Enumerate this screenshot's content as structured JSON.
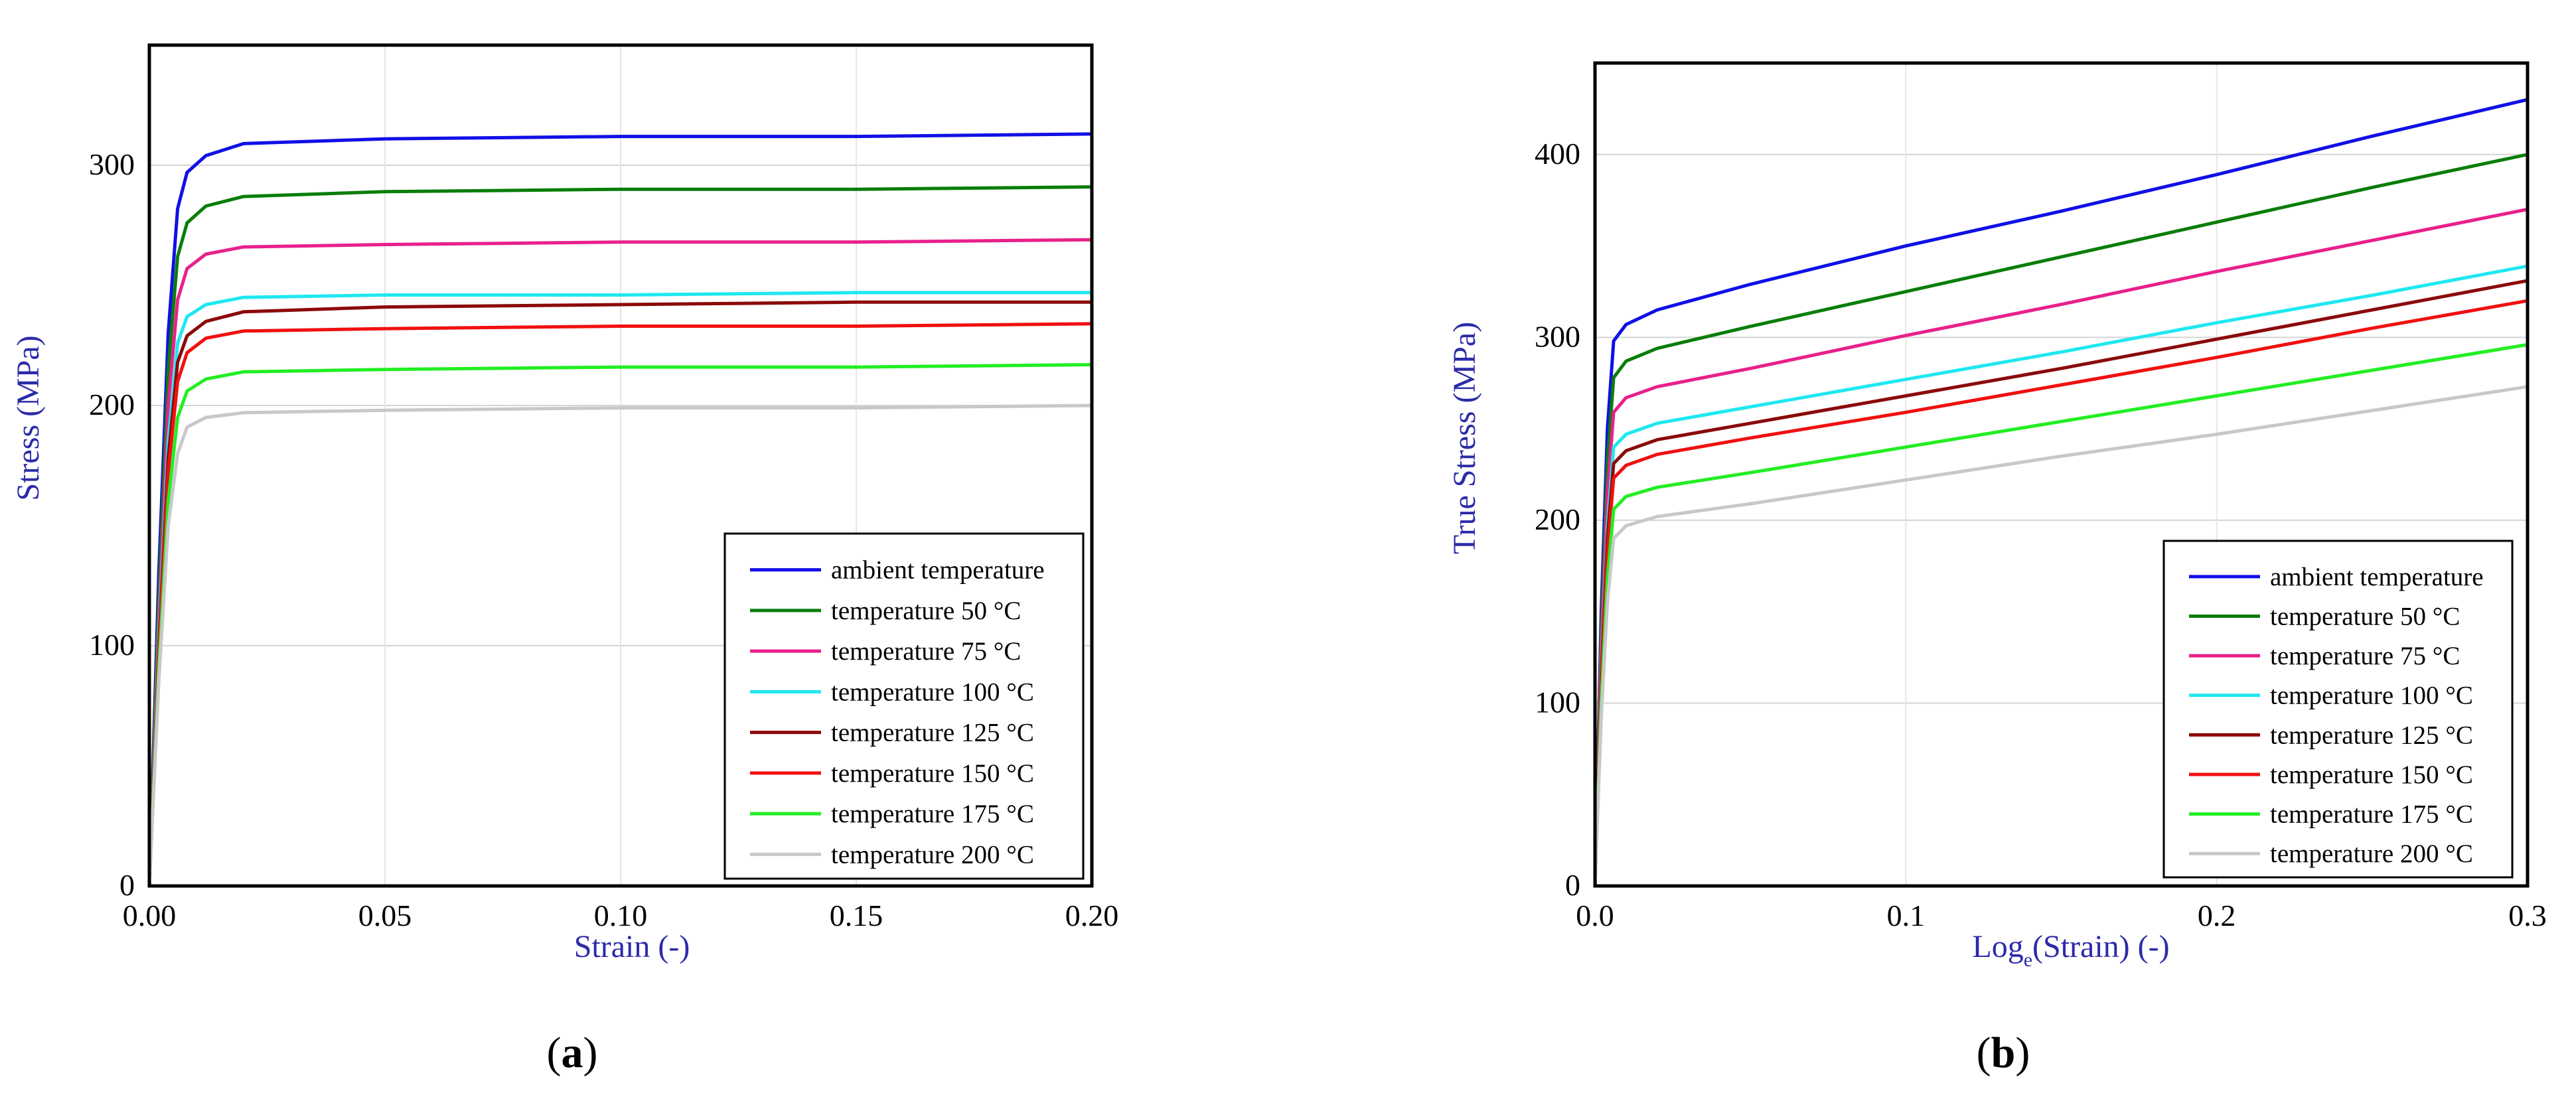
{
  "chart_data": [
    {
      "panel": "a",
      "caption_label": "a",
      "type": "line",
      "xlabel": "Strain (-)",
      "ylabel": "Stress (MPa)",
      "xlim": [
        0,
        0.2
      ],
      "ylim": [
        0,
        350
      ],
      "xticks": [
        0,
        0.05,
        0.1,
        0.15,
        0.2
      ],
      "xtick_labels": [
        "0.00",
        "0.05",
        "0.10",
        "0.15",
        "0.20"
      ],
      "yticks": [
        0,
        100,
        200,
        300
      ],
      "ytick_labels": [
        "0",
        "100",
        "200",
        "300"
      ],
      "grid": true,
      "legend_position": "bottom-right",
      "series": [
        {
          "name": "ambient temperature",
          "color": "#1010e6",
          "x": [
            0,
            0.002,
            0.004,
            0.006,
            0.008,
            0.012,
            0.02,
            0.05,
            0.1,
            0.15,
            0.2
          ],
          "y": [
            0,
            130,
            230,
            282,
            297,
            304,
            309,
            311,
            312,
            312,
            313
          ]
        },
        {
          "name": "temperature 50 °C",
          "color": "#0a7d0a",
          "x": [
            0,
            0.002,
            0.004,
            0.006,
            0.008,
            0.012,
            0.02,
            0.05,
            0.1,
            0.15,
            0.2
          ],
          "y": [
            0,
            120,
            215,
            262,
            276,
            283,
            287,
            289,
            290,
            290,
            291
          ]
        },
        {
          "name": "temperature 75 °C",
          "color": "#e8208c",
          "x": [
            0,
            0.002,
            0.004,
            0.006,
            0.008,
            0.012,
            0.02,
            0.05,
            0.1,
            0.15,
            0.2
          ],
          "y": [
            0,
            110,
            200,
            244,
            257,
            263,
            266,
            267,
            268,
            268,
            269
          ]
        },
        {
          "name": "temperature 100 °C",
          "color": "#1fe8f0",
          "x": [
            0,
            0.002,
            0.004,
            0.006,
            0.008,
            0.012,
            0.02,
            0.05,
            0.1,
            0.15,
            0.2
          ],
          "y": [
            0,
            105,
            185,
            226,
            237,
            242,
            245,
            246,
            246,
            247,
            247
          ]
        },
        {
          "name": "temperature 125 °C",
          "color": "#8b0a0a",
          "x": [
            0,
            0.002,
            0.004,
            0.006,
            0.008,
            0.012,
            0.02,
            0.05,
            0.1,
            0.15,
            0.2
          ],
          "y": [
            0,
            100,
            178,
            218,
            229,
            235,
            239,
            241,
            242,
            243,
            243
          ]
        },
        {
          "name": "temperature 150 °C",
          "color": "#f01010",
          "x": [
            0,
            0.002,
            0.004,
            0.006,
            0.008,
            0.012,
            0.02,
            0.05,
            0.1,
            0.15,
            0.2
          ],
          "y": [
            0,
            98,
            172,
            210,
            222,
            228,
            231,
            232,
            233,
            233,
            234
          ]
        },
        {
          "name": "temperature 175 °C",
          "color": "#22ee22",
          "x": [
            0,
            0.002,
            0.004,
            0.006,
            0.008,
            0.012,
            0.02,
            0.05,
            0.1,
            0.15,
            0.2
          ],
          "y": [
            0,
            90,
            160,
            195,
            206,
            211,
            214,
            215,
            216,
            216,
            217
          ]
        },
        {
          "name": "temperature 200 °C",
          "color": "#c8c8c8",
          "x": [
            0,
            0.002,
            0.004,
            0.006,
            0.008,
            0.012,
            0.02,
            0.05,
            0.1,
            0.15,
            0.2
          ],
          "y": [
            0,
            85,
            150,
            180,
            191,
            195,
            197,
            198,
            199,
            199,
            200
          ]
        }
      ]
    },
    {
      "panel": "b",
      "caption_label": "b",
      "type": "line",
      "xlabel_prefix": "Log",
      "xlabel_subscript": "e",
      "xlabel_suffix": "(Strain) (-)",
      "ylabel": "True Stress (MPa)",
      "xlim": [
        0,
        0.3
      ],
      "ylim": [
        0,
        450
      ],
      "xticks": [
        0,
        0.1,
        0.2,
        0.3
      ],
      "xtick_labels": [
        "0.0",
        "0.1",
        "0.2",
        "0.3"
      ],
      "yticks": [
        0,
        100,
        200,
        300,
        400
      ],
      "ytick_labels": [
        "0",
        "100",
        "200",
        "300",
        "400"
      ],
      "grid": true,
      "legend_position": "bottom-right",
      "series": [
        {
          "name": "ambient temperature",
          "color": "#1010e6",
          "x": [
            0,
            0.002,
            0.004,
            0.006,
            0.01,
            0.02,
            0.05,
            0.1,
            0.15,
            0.2,
            0.25,
            0.3
          ],
          "y": [
            0,
            150,
            250,
            298,
            307,
            315,
            329,
            350,
            369,
            389,
            410,
            430
          ]
        },
        {
          "name": "temperature 50 °C",
          "color": "#0a7d0a",
          "x": [
            0,
            0.002,
            0.004,
            0.006,
            0.01,
            0.02,
            0.05,
            0.1,
            0.15,
            0.2,
            0.25,
            0.3
          ],
          "y": [
            0,
            140,
            232,
            278,
            287,
            294,
            306,
            325,
            344,
            363,
            382,
            400
          ]
        },
        {
          "name": "temperature 75 °C",
          "color": "#e8208c",
          "x": [
            0,
            0.002,
            0.004,
            0.006,
            0.01,
            0.02,
            0.05,
            0.1,
            0.15,
            0.2,
            0.25,
            0.3
          ],
          "y": [
            0,
            130,
            215,
            259,
            267,
            273,
            283,
            301,
            318,
            336,
            353,
            370
          ]
        },
        {
          "name": "temperature 100 °C",
          "color": "#1fe8f0",
          "x": [
            0,
            0.002,
            0.004,
            0.006,
            0.01,
            0.02,
            0.05,
            0.1,
            0.15,
            0.2,
            0.25,
            0.3
          ],
          "y": [
            0,
            120,
            197,
            240,
            247,
            253,
            262,
            277,
            292,
            308,
            323,
            339
          ]
        },
        {
          "name": "temperature 125 °C",
          "color": "#8b0a0a",
          "x": [
            0,
            0.002,
            0.004,
            0.006,
            0.01,
            0.02,
            0.05,
            0.1,
            0.15,
            0.2,
            0.25,
            0.3
          ],
          "y": [
            0,
            115,
            190,
            231,
            238,
            244,
            253,
            268,
            283,
            299,
            315,
            331
          ]
        },
        {
          "name": "temperature 150 °C",
          "color": "#f01010",
          "x": [
            0,
            0.002,
            0.004,
            0.006,
            0.01,
            0.02,
            0.05,
            0.1,
            0.15,
            0.2,
            0.25,
            0.3
          ],
          "y": [
            0,
            110,
            182,
            223,
            230,
            236,
            245,
            259,
            274,
            289,
            305,
            320
          ]
        },
        {
          "name": "temperature 175 °C",
          "color": "#22ee22",
          "x": [
            0,
            0.002,
            0.004,
            0.006,
            0.01,
            0.02,
            0.05,
            0.1,
            0.15,
            0.2,
            0.25,
            0.3
          ],
          "y": [
            0,
            100,
            168,
            206,
            213,
            218,
            226,
            240,
            254,
            268,
            282,
            296
          ]
        },
        {
          "name": "temperature 200 °C",
          "color": "#c8c8c8",
          "x": [
            0,
            0.002,
            0.004,
            0.006,
            0.01,
            0.02,
            0.05,
            0.1,
            0.15,
            0.2,
            0.25,
            0.3
          ],
          "y": [
            0,
            92,
            155,
            190,
            197,
            202,
            209,
            222,
            235,
            247,
            260,
            273
          ]
        }
      ]
    }
  ]
}
